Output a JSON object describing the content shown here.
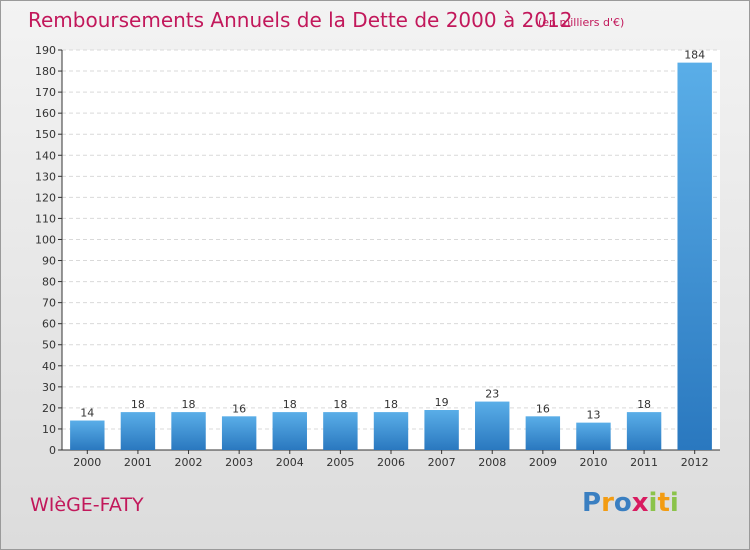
{
  "chart_data": {
    "type": "bar",
    "title": "Remboursements Annuels de la Dette de 2000 à 2012",
    "subtitle": "(en milliers d'€)",
    "categories": [
      "2000",
      "2001",
      "2002",
      "2003",
      "2004",
      "2005",
      "2006",
      "2007",
      "2008",
      "2009",
      "2010",
      "2011",
      "2012"
    ],
    "values": [
      14,
      18,
      18,
      16,
      18,
      18,
      18,
      19,
      23,
      16,
      13,
      18,
      184
    ],
    "xlabel": "",
    "ylabel": "",
    "ylim": [
      0,
      190
    ],
    "yticks": [
      0,
      10,
      20,
      30,
      40,
      50,
      60,
      70,
      80,
      90,
      100,
      110,
      120,
      130,
      140,
      150,
      160,
      170,
      180,
      190
    ],
    "grid": true,
    "bar_color": "#3f8fd6"
  },
  "place_name": "WIèGE-FATY",
  "logo": {
    "letters": [
      "P",
      "r",
      "o",
      "x",
      "i",
      "t",
      "i"
    ],
    "colors": [
      "#3a7fc1",
      "#f39c12",
      "#3a7fc1",
      "#d81b60",
      "#8bc34a",
      "#f39c12",
      "#8bc34a"
    ]
  }
}
